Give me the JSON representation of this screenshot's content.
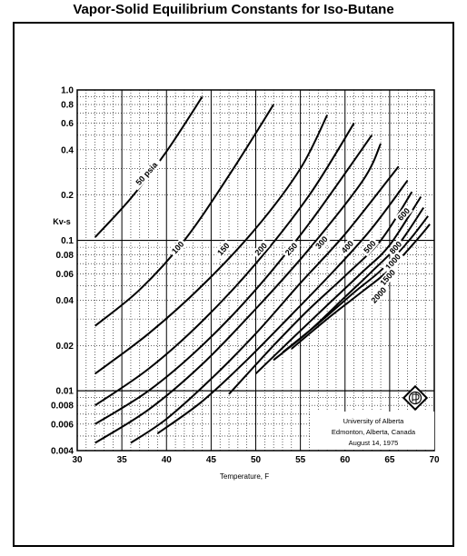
{
  "chart_data": {
    "type": "line",
    "title": "Vapor-Solid Equilibrium Constants for Iso-Butane",
    "xlabel": "Temperature, F",
    "ylabel": "Kv-s",
    "xlim": [
      30,
      70
    ],
    "ylim": [
      0.004,
      1.0
    ],
    "yscale": "log",
    "grid": true,
    "x_ticks": [
      "30",
      "35",
      "40",
      "45",
      "50",
      "55",
      "60",
      "65",
      "70"
    ],
    "y_ticks": [
      {
        "value": 1.0,
        "label": "1.0"
      },
      {
        "value": 0.8,
        "label": "0.8"
      },
      {
        "value": 0.6,
        "label": "0.6"
      },
      {
        "value": 0.4,
        "label": "0.4"
      },
      {
        "value": 0.2,
        "label": "0.2"
      },
      {
        "value": 0.1,
        "label": "0.1"
      },
      {
        "value": 0.08,
        "label": "0.08"
      },
      {
        "value": 0.06,
        "label": "0.06"
      },
      {
        "value": 0.04,
        "label": "0.04"
      },
      {
        "value": 0.02,
        "label": "0.02"
      },
      {
        "value": 0.01,
        "label": "0.01"
      },
      {
        "value": 0.008,
        "label": "0.008"
      },
      {
        "value": 0.006,
        "label": "0.006"
      },
      {
        "value": 0.004,
        "label": "0.004"
      }
    ],
    "series": [
      {
        "name": "50 psia",
        "x": [
          32,
          36,
          40,
          44
        ],
        "y": [
          0.105,
          0.19,
          0.39,
          0.9
        ]
      },
      {
        "name": "100",
        "x": [
          32,
          37,
          42,
          47,
          52
        ],
        "y": [
          0.027,
          0.047,
          0.1,
          0.27,
          0.8
        ]
      },
      {
        "name": "150",
        "x": [
          32,
          38,
          44,
          50,
          55,
          58
        ],
        "y": [
          0.013,
          0.024,
          0.05,
          0.12,
          0.3,
          0.68
        ]
      },
      {
        "name": "200",
        "x": [
          32,
          38,
          44,
          50,
          56,
          61
        ],
        "y": [
          0.008,
          0.014,
          0.029,
          0.07,
          0.2,
          0.6
        ]
      },
      {
        "name": "250",
        "x": [
          32,
          38,
          44,
          50,
          56,
          63
        ],
        "y": [
          0.006,
          0.01,
          0.02,
          0.047,
          0.13,
          0.5
        ]
      },
      {
        "name": "300",
        "x": [
          32,
          38,
          44,
          50,
          56,
          62,
          64
        ],
        "y": [
          0.0045,
          0.0075,
          0.015,
          0.035,
          0.088,
          0.25,
          0.44
        ]
      },
      {
        "name": "400",
        "x": [
          36,
          40,
          45,
          50,
          55,
          60,
          66
        ],
        "y": [
          0.0045,
          0.0065,
          0.012,
          0.024,
          0.052,
          0.11,
          0.31
        ]
      },
      {
        "name": "500",
        "x": [
          39,
          44,
          49,
          54,
          59,
          63,
          67
        ],
        "y": [
          0.0052,
          0.0085,
          0.016,
          0.032,
          0.065,
          0.12,
          0.25
        ]
      },
      {
        "name": "600",
        "x": [
          47,
          52,
          56,
          60,
          64,
          67.5
        ],
        "y": [
          0.0095,
          0.02,
          0.035,
          0.058,
          0.1,
          0.21
        ]
      },
      {
        "name": "800",
        "x": [
          50,
          54,
          58,
          62,
          65,
          68.5
        ],
        "y": [
          0.013,
          0.022,
          0.037,
          0.062,
          0.093,
          0.195
        ]
      },
      {
        "name": "1000",
        "x": [
          52,
          56,
          60,
          63,
          66,
          68.8
        ],
        "y": [
          0.016,
          0.025,
          0.042,
          0.062,
          0.094,
          0.165
        ]
      },
      {
        "name": "1500",
        "x": [
          53,
          57,
          61,
          64,
          67,
          69.3
        ],
        "y": [
          0.018,
          0.028,
          0.045,
          0.063,
          0.097,
          0.145
        ]
      },
      {
        "name": "2000",
        "x": [
          54,
          58,
          62,
          65,
          68,
          69.5
        ],
        "y": [
          0.019,
          0.03,
          0.046,
          0.064,
          0.1,
          0.128
        ]
      }
    ],
    "series_labels": [
      "50 psia",
      "100",
      "150",
      "200",
      "250",
      "300",
      "400",
      "500",
      "600",
      "800",
      "1000",
      "1500",
      "2000"
    ],
    "annotation": {
      "lines": [
        "University of Alberta",
        "Edmonton, Alberta, Canada",
        "August 14, 1975"
      ]
    }
  }
}
